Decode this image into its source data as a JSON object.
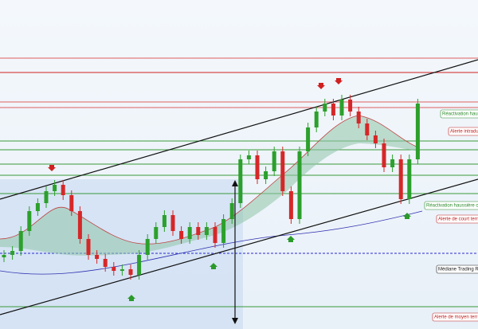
{
  "chart_data": {
    "type": "candlestick",
    "ylim": [
      0,
      413
    ],
    "open": [
      90,
      93,
      98,
      123,
      148,
      158,
      173,
      181,
      168,
      148,
      113,
      93,
      88,
      78,
      73,
      75,
      68,
      93,
      113,
      128,
      143,
      123,
      113,
      128,
      118,
      128,
      108,
      138,
      158,
      213,
      218,
      188,
      198,
      223,
      173,
      138,
      223,
      253,
      273,
      283,
      268,
      288,
      273,
      258,
      243,
      233,
      203,
      213,
      163,
      213
    ],
    "high": [
      99,
      104,
      129,
      154,
      164,
      179,
      187,
      187,
      174,
      154,
      119,
      99,
      94,
      84,
      81,
      81,
      99,
      119,
      134,
      149,
      149,
      129,
      134,
      134,
      134,
      134,
      144,
      164,
      219,
      224,
      224,
      204,
      229,
      229,
      179,
      229,
      259,
      279,
      289,
      289,
      294,
      294,
      279,
      264,
      249,
      239,
      219,
      219,
      219,
      289
    ],
    "low": [
      84,
      87,
      92,
      117,
      142,
      152,
      167,
      162,
      142,
      107,
      87,
      82,
      72,
      67,
      67,
      62,
      62,
      87,
      107,
      122,
      117,
      107,
      107,
      112,
      112,
      102,
      102,
      132,
      152,
      207,
      182,
      182,
      192,
      167,
      132,
      132,
      217,
      247,
      267,
      262,
      262,
      267,
      252,
      237,
      227,
      197,
      197,
      157,
      157,
      207
    ],
    "close": [
      93,
      98,
      123,
      148,
      158,
      173,
      181,
      168,
      148,
      113,
      93,
      88,
      78,
      73,
      75,
      68,
      93,
      113,
      128,
      143,
      123,
      113,
      128,
      118,
      128,
      108,
      138,
      158,
      213,
      218,
      188,
      198,
      223,
      173,
      138,
      223,
      253,
      273,
      283,
      268,
      288,
      273,
      258,
      243,
      233,
      203,
      213,
      163,
      213,
      283
    ],
    "up_color": "#2ca02c",
    "down_color": "#d62728",
    "levels": [
      {
        "value": 340,
        "color": "#e06060"
      },
      {
        "value": 322,
        "color": "#d02020"
      },
      {
        "value": 285,
        "color": "#e06060"
      },
      {
        "value": 278,
        "color": "#e06060"
      },
      {
        "value": 236,
        "color": "#3a9a3a"
      },
      {
        "value": 225,
        "color": "#3a9a3a"
      },
      {
        "value": 207,
        "color": "#3a9a3a"
      },
      {
        "value": 193,
        "color": "#3a9a3a"
      },
      {
        "value": 170,
        "color": "#3a9a3a"
      },
      {
        "value": 28,
        "color": "#3a9a3a"
      },
      {
        "value": 95,
        "color": "#2a2ad0",
        "dashed": true
      }
    ],
    "annotations": [
      {
        "text": "Réactivation hauss",
        "color": "#2a8a2a"
      },
      {
        "text": "Alerte intradu",
        "color": "#c02020"
      },
      {
        "text": "Réactivation haussière c",
        "color": "#2a8a2a"
      },
      {
        "text": "Alerte de court terr",
        "color": "#c02020"
      },
      {
        "text": "Médiane Trading Ran",
        "color": "#202020"
      },
      {
        "text": "Alerte de moyen terr",
        "color": "#c02020"
      }
    ]
  }
}
